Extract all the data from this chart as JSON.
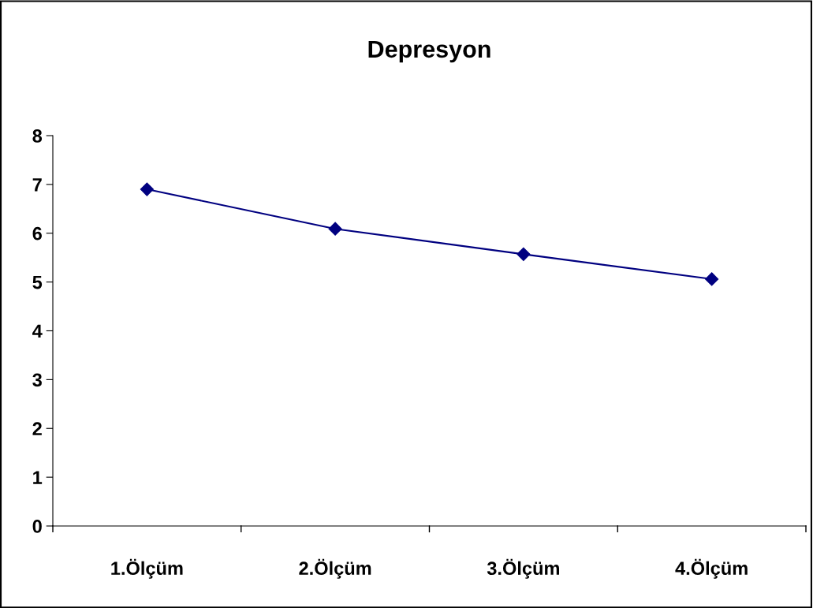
{
  "chart_data": {
    "type": "line",
    "title": "Depresyon",
    "categories": [
      "1.Ölçüm",
      "2.Ölçüm",
      "3.Ölçüm",
      "4.Ölçüm"
    ],
    "series": [
      {
        "color": "#000080",
        "values": [
          6.9,
          6.09,
          5.57,
          5.06
        ]
      }
    ],
    "ylim": [
      0,
      8
    ],
    "yticks": [
      0,
      1,
      2,
      3,
      4,
      5,
      6,
      7,
      8
    ],
    "grid": false,
    "marker": "diamond",
    "line_style": "solid"
  }
}
